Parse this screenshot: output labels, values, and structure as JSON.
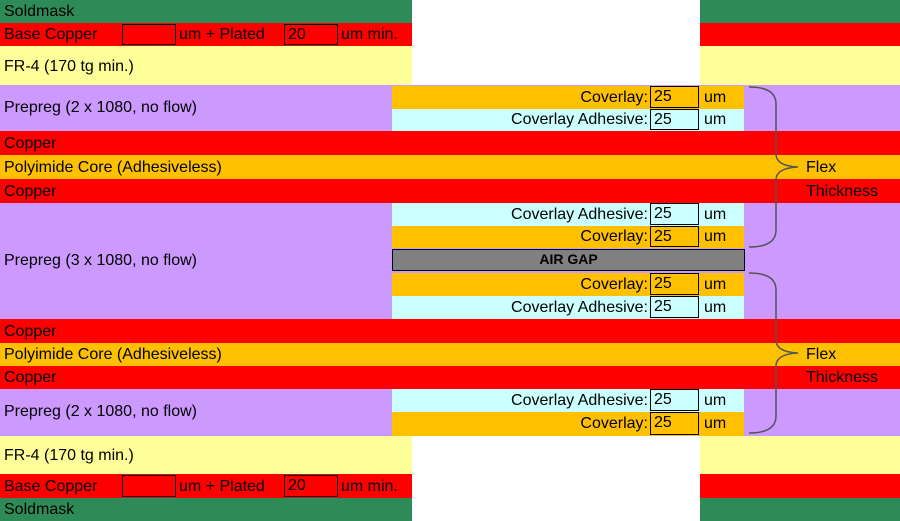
{
  "colors": {
    "soldmask": "#2e8b57",
    "copper": "#ff0000",
    "fr4": "#ffff99",
    "prepreg": "#cc99ff",
    "polyimide": "#ffc000",
    "coverlay": "#ffc000",
    "coverlay_adhesive": "#ccffff",
    "air_gap": "#808080",
    "blank": "#ffffff"
  },
  "layers": {
    "top_soldmask": "Soldmask",
    "top_base_copper": {
      "label": "Base Copper",
      "base_value": "",
      "plus_plated": "um + Plated",
      "plated_value": "20",
      "min": "um min."
    },
    "top_fr4": "FR-4 (170 tg min.)",
    "prepreg_top": "Prepreg (2 x 1080, no flow)",
    "copper_1": "Copper",
    "polyimide_1": "Polyimide Core (Adhesiveless)",
    "copper_2": "Copper",
    "prepreg_mid": "Prepreg (3 x 1080, no flow)",
    "copper_3": "Copper",
    "polyimide_2": "Polyimide Core (Adhesiveless)",
    "copper_4": "Copper",
    "prepreg_bottom": "Prepreg (2 x 1080, no flow)",
    "bottom_fr4": "FR-4 (170 tg min.)",
    "bottom_base_copper": {
      "label": "Base Copper",
      "base_value": "",
      "plus_plated": "um + Plated",
      "plated_value": "20",
      "min": "um min."
    },
    "bottom_soldmask": "Soldmask"
  },
  "flex_rows": [
    {
      "label": "Coverlay:",
      "value": "25",
      "unit": "um",
      "kind": "coverlay"
    },
    {
      "label": "Coverlay Adhesive:",
      "value": "25",
      "unit": "um",
      "kind": "coverlay_adhesive"
    },
    {
      "label": "Coverlay Adhesive:",
      "value": "25",
      "unit": "um",
      "kind": "coverlay_adhesive"
    },
    {
      "label": "Coverlay:",
      "value": "25",
      "unit": "um",
      "kind": "coverlay"
    },
    {
      "label": "Coverlay:",
      "value": "25",
      "unit": "um",
      "kind": "coverlay"
    },
    {
      "label": "Coverlay Adhesive:",
      "value": "25",
      "unit": "um",
      "kind": "coverlay_adhesive"
    },
    {
      "label": "Coverlay Adhesive:",
      "value": "25",
      "unit": "um",
      "kind": "coverlay_adhesive"
    },
    {
      "label": "Coverlay:",
      "value": "25",
      "unit": "um",
      "kind": "coverlay"
    }
  ],
  "air_gap_label": "AIR GAP",
  "flex_thickness_annotations": [
    {
      "line1": "Flex",
      "line2": "Thickness"
    },
    {
      "line1": "Flex",
      "line2": "Thickness"
    }
  ]
}
